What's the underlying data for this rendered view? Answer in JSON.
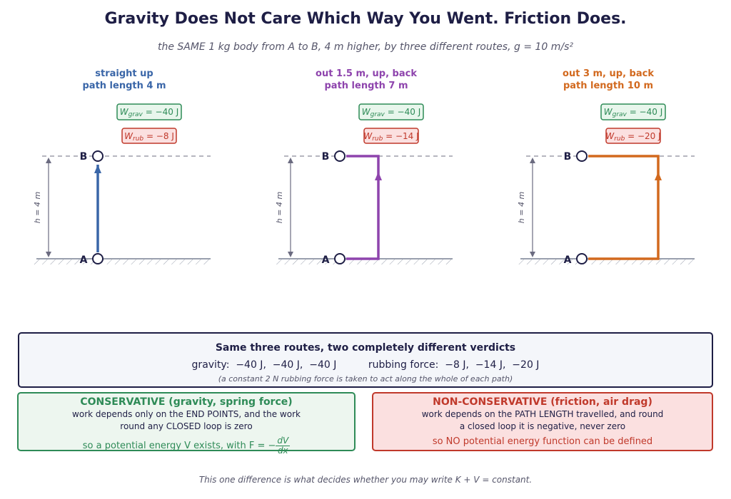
{
  "title": "Gravity Does Not Care Which Way You Went.  Friction Does.",
  "subtitle": "the SAME 1 kg body from A to B, 4 m higher, by three different routes,  g = 10 m/s²",
  "colors": {
    "gravity": "#2e8b57",
    "rubbing": "#c0392b",
    "ink": "#1e1e45"
  },
  "routes": [
    {
      "label1": "straight up",
      "label2": "path length 4 m",
      "w_grav": "W grav = −40 J",
      "grav_sym": "W",
      "grav_sub": "grav",
      "grav_val": " = −40 J",
      "rub_sym": "W",
      "rub_sub": "rub",
      "rub_val": " = −8 J",
      "height": "h = 4 m",
      "point_a": "A",
      "point_b": "B",
      "color": "#3a66a8",
      "sideways_m": 0,
      "path_m": 4
    },
    {
      "label1": "out 1.5 m, up, back",
      "label2": "path length 7 m",
      "grav_sym": "W",
      "grav_sub": "grav",
      "grav_val": " = −40 J",
      "rub_sym": "W",
      "rub_sub": "rub",
      "rub_val": " = −14 J",
      "height": "h = 4 m",
      "point_a": "A",
      "point_b": "B",
      "color": "#8e44ad",
      "sideways_m": 1.5,
      "path_m": 7
    },
    {
      "label1": "out 3 m, up, back",
      "label2": "path length 10 m",
      "grav_sym": "W",
      "grav_sub": "grav",
      "grav_val": " = −40 J",
      "rub_sym": "W",
      "rub_sub": "rub",
      "rub_val": " = −20 J",
      "height": "h = 4 m",
      "point_a": "A",
      "point_b": "B",
      "color": "#d2691e",
      "sideways_m": 3,
      "path_m": 10
    }
  ],
  "summary": {
    "heading": "Same three routes, two completely different verdicts",
    "row": "gravity:  −40 J,  −40 J,  −40 J          rubbing force:  −8 J,  −14 J,  −20 J",
    "note": "(a constant 2 N rubbing force is taken to act along the whole of each path)"
  },
  "conservative": {
    "heading": "CONSERVATIVE  (gravity, spring force)",
    "line1": "work depends only on the END POINTS, and the work",
    "line2": "round any CLOSED loop is zero",
    "formula_prefix": "so a potential energy V exists, with F = −",
    "num": "dV",
    "den": "dx"
  },
  "nonconservative": {
    "heading": "NON-CONSERVATIVE  (friction, air drag)",
    "line1": "work depends on the PATH LENGTH travelled, and round",
    "line2": "a closed loop it is negative, never zero",
    "formula": "so NO potential energy function can be defined"
  },
  "footer": "This one difference is what decides whether you may write K + V =  constant."
}
